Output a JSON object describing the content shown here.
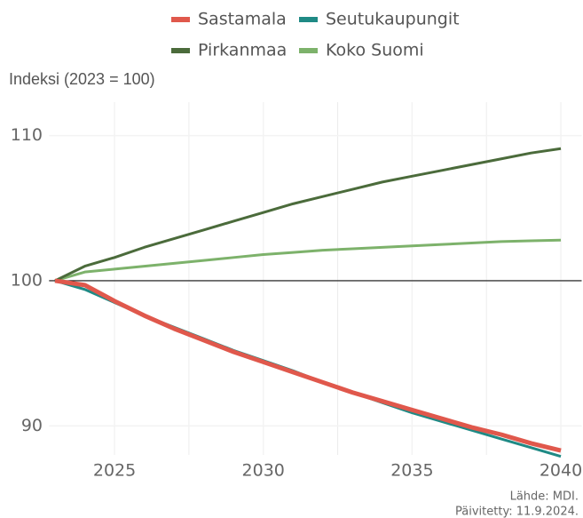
{
  "chart_data": {
    "type": "line",
    "y_axis_label": "Indeksi (2023 = 100)",
    "x": [
      2023,
      2024,
      2025,
      2026,
      2027,
      2028,
      2029,
      2030,
      2031,
      2032,
      2033,
      2034,
      2035,
      2036,
      2037,
      2038,
      2039,
      2040
    ],
    "series": [
      {
        "name": "Sastamala",
        "color": "#e0584c",
        "values": [
          100,
          99.7,
          98.6,
          97.6,
          96.7,
          95.9,
          95.1,
          94.4,
          93.7,
          93.0,
          92.3,
          91.7,
          91.1,
          90.5,
          89.9,
          89.4,
          88.8,
          88.3
        ]
      },
      {
        "name": "Seutukaupungit",
        "color": "#1f8a85",
        "values": [
          100,
          99.4,
          98.5,
          97.6,
          96.8,
          96.0,
          95.2,
          94.5,
          93.8,
          93.0,
          92.3,
          91.6,
          90.9,
          90.3,
          89.7,
          89.1,
          88.5,
          87.9
        ]
      },
      {
        "name": "Pirkanmaa",
        "color": "#4b6b3b",
        "values": [
          100,
          101.0,
          101.6,
          102.3,
          102.9,
          103.5,
          104.1,
          104.7,
          105.3,
          105.8,
          106.3,
          106.8,
          107.2,
          107.6,
          108.0,
          108.4,
          108.8,
          109.1
        ]
      },
      {
        "name": "Koko Suomi",
        "color": "#7db26b",
        "values": [
          100,
          100.6,
          100.8,
          101.0,
          101.2,
          101.4,
          101.6,
          101.8,
          101.95,
          102.1,
          102.2,
          102.3,
          102.4,
          102.5,
          102.6,
          102.7,
          102.75,
          102.8
        ]
      }
    ],
    "xlim": [
      2022.8,
      2040.7
    ],
    "ylim": [
      88,
      112.3
    ],
    "xticks": [
      2025,
      2030,
      2035,
      2040
    ],
    "x_minor_ticks": [
      2027.5,
      2032.5,
      2037.5
    ],
    "yticks": [
      90,
      100,
      110
    ],
    "reference_line": 100,
    "grid": true,
    "legend_position": "top",
    "source": [
      "Lähde: MDI.",
      "Päivitetty: 11.9.2024."
    ]
  }
}
